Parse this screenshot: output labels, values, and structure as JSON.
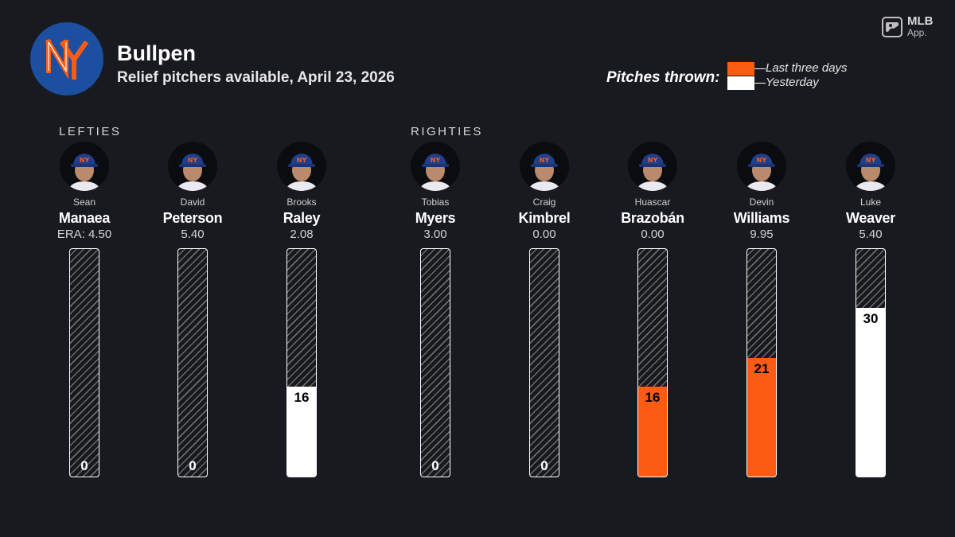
{
  "header": {
    "title": "Bullpen",
    "subtitle": "Relief pitchers available, April 23, 2026",
    "team_logo_letters": "NY",
    "team_logo_color": "#1d4fa0",
    "accent_color": "#fc5b14"
  },
  "brand": {
    "name": "MLB",
    "sub": "App."
  },
  "legend": {
    "title": "Pitches thrown:",
    "items": [
      {
        "label": "Last three days",
        "color": "#fc5b14"
      },
      {
        "label": "Yesterday",
        "color": "#ffffff"
      }
    ]
  },
  "groups": {
    "lefties": "LEFTIES",
    "righties": "RIGHTIES"
  },
  "scale_max_pitches": 40,
  "pitchers": [
    {
      "first": "Sean",
      "last": "Manaea",
      "era": "ERA: 4.50",
      "pitches": 0,
      "label": "0",
      "period": "none"
    },
    {
      "first": "David",
      "last": "Peterson",
      "era": "5.40",
      "pitches": 0,
      "label": "0",
      "period": "none"
    },
    {
      "first": "Brooks",
      "last": "Raley",
      "era": "2.08",
      "pitches": 16,
      "label": "16",
      "period": "yesterday"
    },
    {
      "first": "Tobias",
      "last": "Myers",
      "era": "3.00",
      "pitches": 0,
      "label": "0",
      "period": "none"
    },
    {
      "first": "Craig",
      "last": "Kimbrel",
      "era": "0.00",
      "pitches": 0,
      "label": "0",
      "period": "none"
    },
    {
      "first": "Huascar",
      "last": "Brazobán",
      "era": "0.00",
      "pitches": 16,
      "label": "16",
      "period": "last_three_days"
    },
    {
      "first": "Devin",
      "last": "Williams",
      "era": "9.95",
      "pitches": 21,
      "label": "21",
      "period": "last_three_days"
    },
    {
      "first": "Luke",
      "last": "Weaver",
      "era": "5.40",
      "pitches": 30,
      "label": "30",
      "period": "yesterday"
    }
  ]
}
